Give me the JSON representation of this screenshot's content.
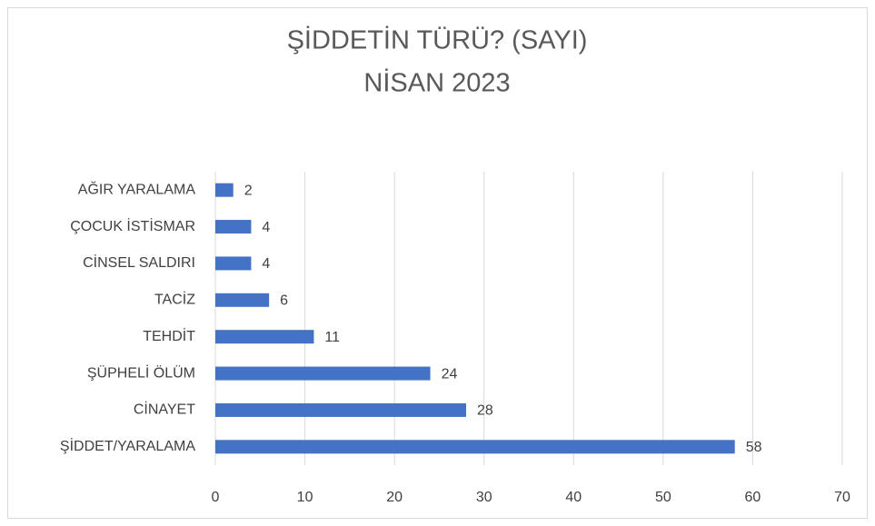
{
  "chart_data": {
    "type": "barh",
    "title": "ŞİDDETİN TÜRÜ? (SAYI)",
    "subtitle": "NİSAN 2023",
    "categories": [
      "AĞIR YARALAMA",
      "ÇOCUK İSTİSMAR",
      "CİNSEL SALDIRI",
      "TACİZ",
      "TEHDİT",
      "ŞÜPHELİ ÖLÜM",
      "CİNAYET",
      "ŞİDDET/YARALAMA"
    ],
    "values": [
      2,
      4,
      4,
      6,
      11,
      24,
      28,
      58
    ],
    "color": "#4472c4",
    "xlim": [
      0,
      70
    ],
    "xticks": [
      0,
      10,
      20,
      30,
      40,
      50,
      60,
      70
    ],
    "grid": true
  }
}
